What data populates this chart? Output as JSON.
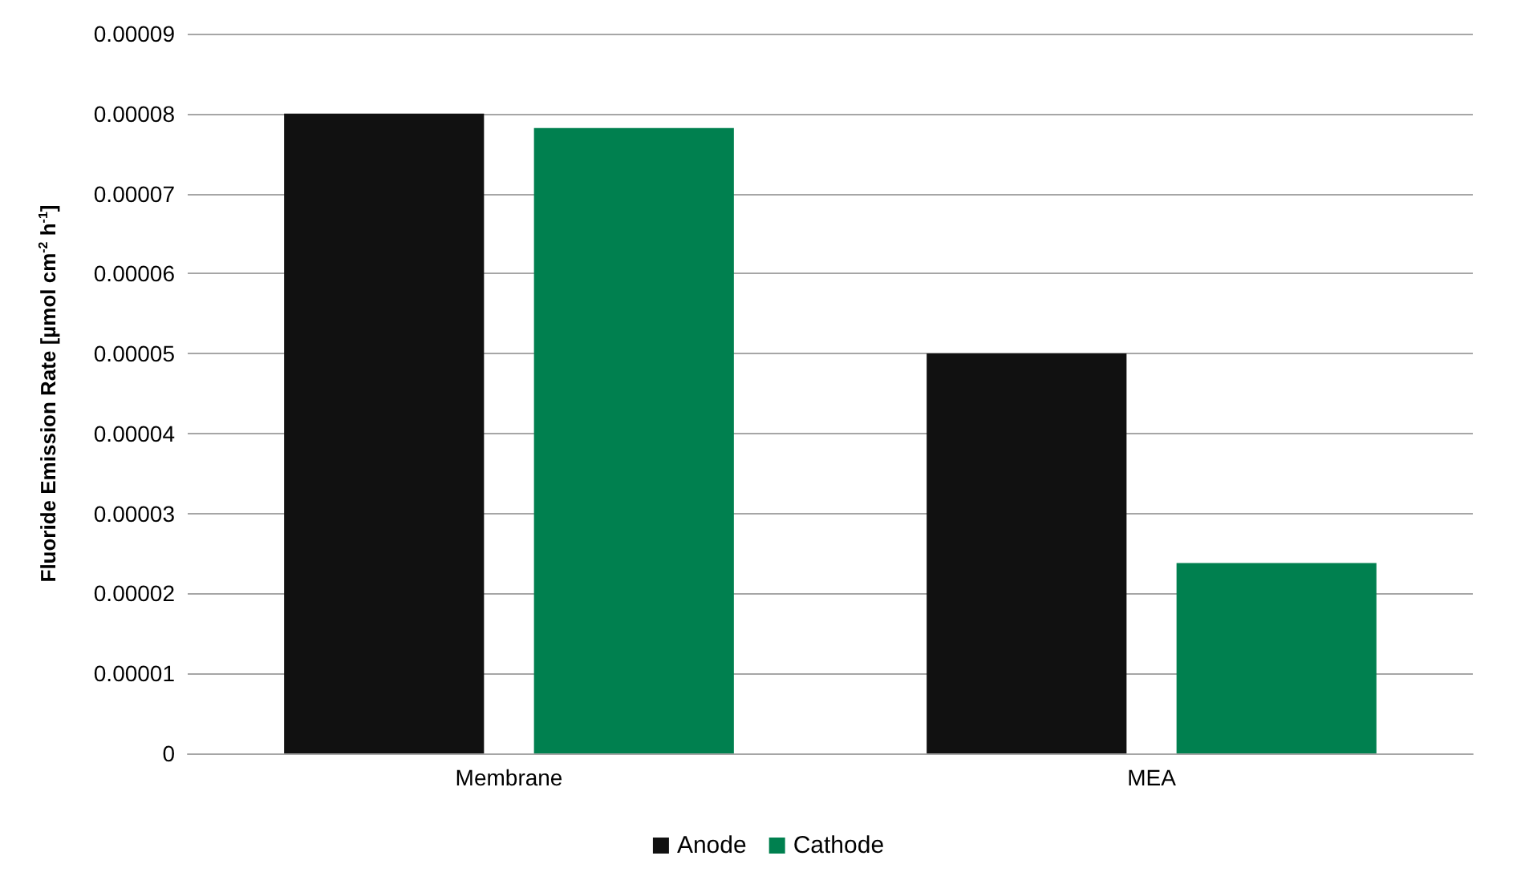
{
  "chart_data": {
    "type": "bar",
    "ylabel": "Fluoride Emission Rate [µmol cm$^{-2}$ h$^{-1}$]",
    "categories": [
      "Membrane",
      "MEA"
    ],
    "series": [
      {
        "name": "Anode",
        "color": "#111111",
        "values": [
          8e-05,
          5e-05
        ]
      },
      {
        "name": "Cathode",
        "color": "#00804f",
        "values": [
          7.82e-05,
          2.38e-05
        ]
      }
    ],
    "ylim": [
      0,
      9e-05
    ],
    "yticks": [
      0,
      {
        "value": 1e-05,
        "label": "0.00001"
      },
      {
        "value": 2e-05,
        "label": "0.00002"
      },
      {
        "value": 3e-05,
        "label": "0.00003"
      },
      {
        "value": 4e-05,
        "label": "0.00004"
      },
      {
        "value": 5e-05,
        "label": "0.00005"
      },
      {
        "value": 6e-05,
        "label": "0.00006"
      },
      {
        "value": 7e-05,
        "label": "0.00007"
      },
      {
        "value": 8e-05,
        "label": "0.00008"
      },
      {
        "value": 9e-05,
        "label": "0.00009"
      }
    ],
    "grid": "y",
    "legend": "bottom"
  }
}
